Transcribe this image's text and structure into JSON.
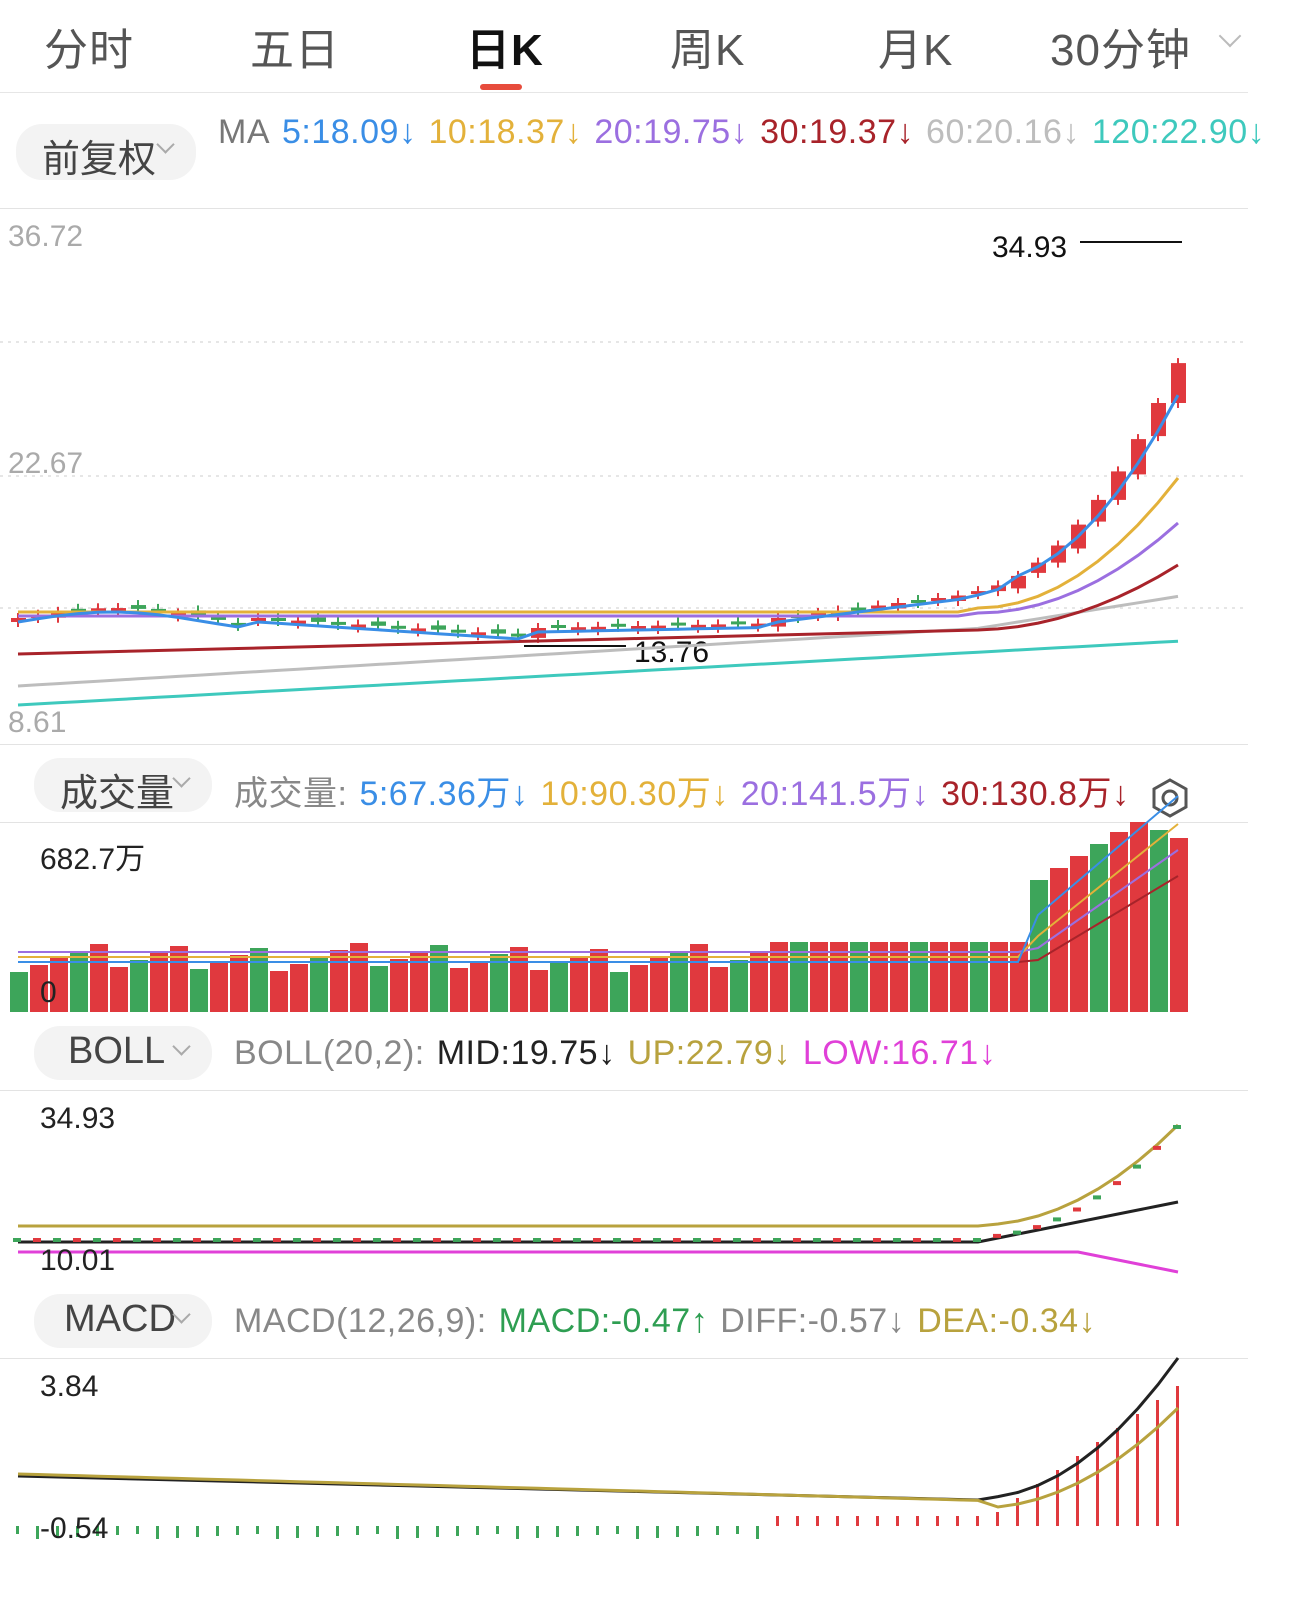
{
  "tabs": [
    {
      "label": "分时"
    },
    {
      "label": "五日"
    },
    {
      "label": "日K",
      "active": true
    },
    {
      "label": "周K"
    },
    {
      "label": "月K"
    },
    {
      "label": "30分钟"
    }
  ],
  "ma_panel": {
    "adjust_selector": "前复权",
    "prefix": "MA",
    "items": [
      {
        "text": "5:18.09↓",
        "color": "#3a8ee6"
      },
      {
        "text": "10:18.37↓",
        "color": "#e3b13a"
      },
      {
        "text": "20:19.75↓",
        "color": "#9b6fe0"
      },
      {
        "text": "30:19.37↓",
        "color": "#a8232a"
      },
      {
        "text": "60:20.16↓",
        "color": "#bdbdbd"
      },
      {
        "text": "120:22.90↓",
        "color": "#3ec9bd"
      }
    ],
    "axis": {
      "top": "36.72",
      "mid": "22.67",
      "bottom": "8.61"
    },
    "high_label": "34.93",
    "low_label": "13.76"
  },
  "volume_panel": {
    "selector": "成交量",
    "prefix": "成交量:",
    "items": [
      {
        "text": "5:67.36万↓",
        "color": "#3a8ee6"
      },
      {
        "text": "10:90.30万↓",
        "color": "#e3b13a"
      },
      {
        "text": "20:141.5万↓",
        "color": "#9b6fe0"
      },
      {
        "text": "30:130.8万↓",
        "color": "#a8232a"
      }
    ],
    "axis_top": "682.7万",
    "axis_bottom": "0",
    "settings_icon": "gear-icon"
  },
  "boll_panel": {
    "selector": "BOLL",
    "prefix": "BOLL(20,2):",
    "items": [
      {
        "text": "MID:19.75↓",
        "color": "#222222"
      },
      {
        "text": "UP:22.79↓",
        "color": "#b8a23e"
      },
      {
        "text": "LOW:16.71↓",
        "color": "#e040d8"
      }
    ],
    "axis_top": "34.93",
    "axis_bottom": "10.01"
  },
  "macd_panel": {
    "selector": "MACD",
    "prefix": "MACD(12,26,9):",
    "items": [
      {
        "text": "MACD:-0.47↑",
        "color": "#2e9e52"
      },
      {
        "text": "DIFF:-0.57↓",
        "color": "#888888"
      },
      {
        "text": "DEA:-0.34↓",
        "color": "#b8a23e"
      }
    ],
    "axis_top": "3.84",
    "axis_bottom": "-0.54"
  },
  "colors": {
    "up": "#e0393e",
    "down": "#3da55a"
  }
}
